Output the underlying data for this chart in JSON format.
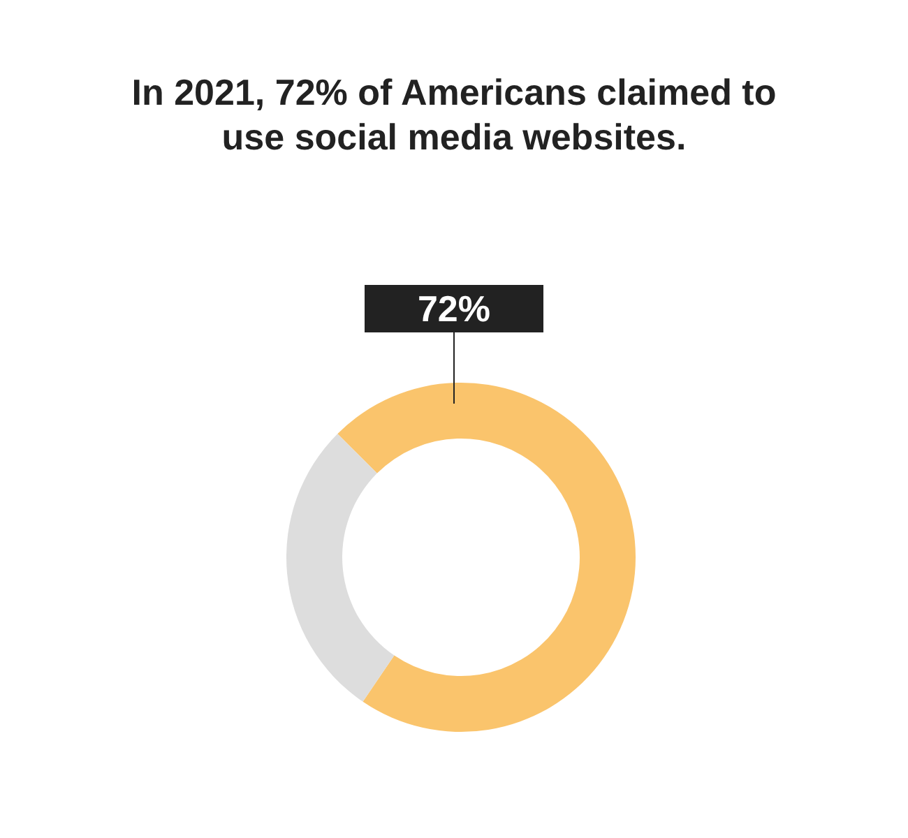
{
  "chart_data": {
    "type": "donut",
    "title": "In 2021, 72% of Americans claimed to use social media websites.",
    "categories": [
      null,
      null
    ],
    "values": [
      72,
      28
    ],
    "colors": [
      "#fac46c",
      "#dddddd"
    ],
    "value_labels": [
      "72%",
      null
    ]
  }
}
